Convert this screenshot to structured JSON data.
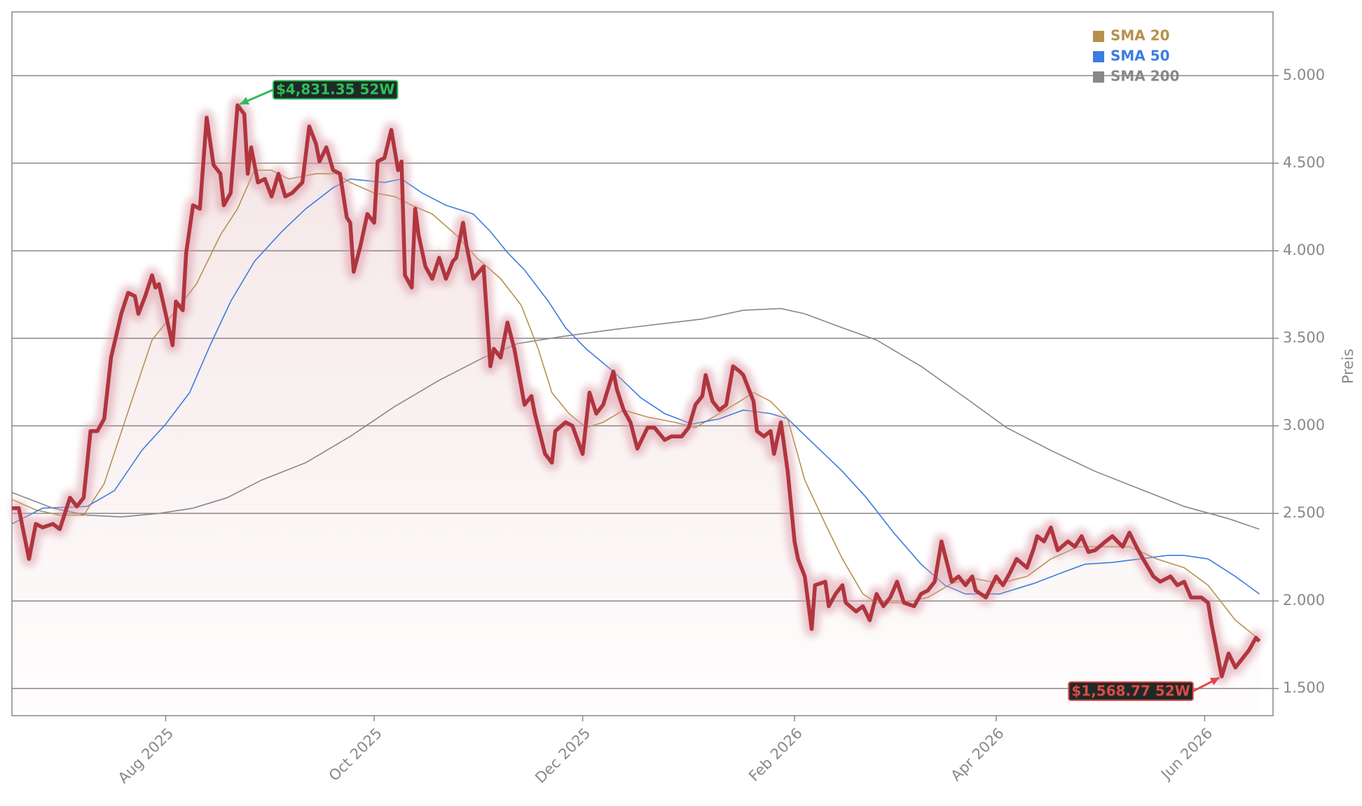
{
  "chart_data": {
    "type": "line",
    "color": "#b0353f",
    "x": [
      -45,
      -43,
      -40,
      -38,
      -36,
      -33,
      -31,
      -28,
      -26,
      -24,
      -22,
      -20,
      -18,
      -16,
      -13,
      -11,
      -9,
      -8,
      -6,
      -4,
      -3,
      -2,
      0,
      2,
      3,
      5,
      6,
      8,
      10,
      12,
      14,
      16,
      17,
      19,
      21,
      23,
      24,
      25,
      27,
      29,
      31,
      33,
      35,
      37,
      40,
      42,
      44,
      45,
      47,
      49,
      51,
      53,
      54,
      55,
      57,
      59,
      61,
      62,
      64,
      66,
      68,
      69,
      70,
      72,
      73,
      74,
      76,
      78,
      80,
      82,
      84,
      85,
      87,
      88,
      90,
      93,
      95,
      96,
      98,
      100,
      102,
      105,
      107,
      108,
      111,
      113,
      114,
      117,
      119,
      122,
      124,
      126,
      128,
      131,
      132,
      134,
      136,
      138,
      141,
      143,
      146,
      148,
      151,
      153,
      155,
      157,
      158,
      160,
      162,
      164,
      166,
      168,
      169,
      172,
      173,
      175,
      177,
      178,
      180,
      182,
      184,
      185,
      187,
      189,
      190,
      193,
      194,
      196,
      198,
      199,
      202,
      204,
      206,
      208,
      210,
      212,
      214,
      216,
      219,
      221,
      223,
      225,
      227,
      230,
      232,
      234,
      236,
      237,
      240,
      243,
      245,
      247,
      249,
      252,
      254,
      255,
      257,
      259,
      261,
      264,
      266,
      268,
      270,
      272,
      275,
      277,
      280,
      282,
      284,
      286,
      289,
      291,
      294,
      296,
      298,
      300,
      303,
      305,
      306,
      307,
      309,
      311,
      313,
      315,
      317,
      319,
      320
    ],
    "values": [
      2530,
      2530,
      2240,
      2440,
      2420,
      2440,
      2410,
      2590,
      2540,
      2590,
      2970,
      2970,
      3040,
      3390,
      3640,
      3760,
      3740,
      3640,
      3740,
      3860,
      3790,
      3810,
      3640,
      3460,
      3710,
      3660,
      3990,
      4260,
      4240,
      4760,
      4490,
      4440,
      4260,
      4330,
      4831.35,
      4780,
      4440,
      4590,
      4390,
      4410,
      4310,
      4440,
      4310,
      4330,
      4390,
      4710,
      4610,
      4510,
      4590,
      4460,
      4440,
      4190,
      4160,
      3880,
      4030,
      4210,
      4160,
      4510,
      4530,
      4690,
      4460,
      4510,
      3860,
      3790,
      4240,
      4090,
      3910,
      3840,
      3960,
      3840,
      3940,
      3960,
      4160,
      4030,
      3840,
      3910,
      3340,
      3440,
      3390,
      3590,
      3440,
      3120,
      3170,
      3070,
      2840,
      2790,
      2970,
      3020,
      3000,
      2840,
      3190,
      3070,
      3120,
      3310,
      3210,
      3090,
      3020,
      2870,
      2990,
      2990,
      2920,
      2940,
      2940,
      2990,
      3120,
      3170,
      3290,
      3140,
      3090,
      3120,
      3340,
      3310,
      3290,
      3140,
      2970,
      2940,
      2970,
      2840,
      3020,
      2740,
      2340,
      2240,
      2140,
      1840,
      2090,
      2110,
      1970,
      2040,
      2090,
      1990,
      1940,
      1970,
      1890,
      2040,
      1970,
      2020,
      2110,
      1990,
      1970,
      2040,
      2060,
      2110,
      2340,
      2110,
      2140,
      2090,
      2140,
      2060,
      2020,
      2140,
      2090,
      2160,
      2240,
      2190,
      2300,
      2370,
      2340,
      2420,
      2290,
      2340,
      2310,
      2370,
      2280,
      2290,
      2340,
      2370,
      2310,
      2390,
      2310,
      2240,
      2140,
      2110,
      2140,
      2090,
      2110,
      2020,
      2020,
      1990,
      1870,
      1770,
      1568.77,
      1700,
      1620,
      1670,
      1720,
      1790,
      1770
    ],
    "series": [
      {
        "name": "SMA 20",
        "color": "#b5924c",
        "x": [
          -45,
          -38,
          -31,
          -24,
          -18,
          -10,
          -4,
          3,
          9,
          16,
          21,
          26,
          31,
          36,
          44,
          50,
          54,
          61,
          67,
          72,
          78,
          85,
          91,
          98,
          104,
          109,
          113,
          118,
          123,
          128,
          134,
          141,
          149,
          155,
          162,
          168,
          172,
          177,
          182,
          187,
          193,
          198,
          204,
          208,
          216,
          223,
          230,
          236,
          244,
          252,
          259,
          267,
          275,
          282,
          290,
          298,
          305,
          313,
          320
        ],
        "values": [
          2580,
          2520,
          2490,
          2490,
          2670,
          3140,
          3490,
          3660,
          3810,
          4090,
          4240,
          4460,
          4460,
          4410,
          4440,
          4440,
          4390,
          4330,
          4310,
          4260,
          4210,
          4090,
          3960,
          3840,
          3690,
          3440,
          3190,
          3070,
          2990,
          3020,
          3090,
          3050,
          3020,
          2990,
          3070,
          3140,
          3190,
          3140,
          3040,
          2690,
          2440,
          2240,
          2040,
          1990,
          1990,
          2020,
          2100,
          2130,
          2100,
          2140,
          2240,
          2310,
          2310,
          2310,
          2240,
          2190,
          2090,
          1890,
          1780
        ]
      },
      {
        "name": "SMA 50",
        "color": "#3b7de0",
        "x": [
          -45,
          -36,
          -23,
          -15,
          -7,
          0,
          7,
          13,
          19,
          26,
          34,
          41,
          49,
          54,
          59,
          64,
          69,
          75,
          82,
          90,
          95,
          100,
          105,
          112,
          117,
          123,
          131,
          139,
          146,
          154,
          162,
          169,
          177,
          182,
          190,
          198,
          205,
          213,
          221,
          228,
          234,
          244,
          254,
          262,
          269,
          277,
          285,
          293,
          298,
          305,
          313,
          320
        ],
        "values": [
          2440,
          2530,
          2540,
          2630,
          2860,
          3010,
          3190,
          3460,
          3710,
          3940,
          4110,
          4240,
          4360,
          4410,
          4400,
          4390,
          4410,
          4330,
          4260,
          4210,
          4110,
          3990,
          3890,
          3710,
          3560,
          3440,
          3310,
          3160,
          3070,
          3010,
          3040,
          3090,
          3070,
          3040,
          2890,
          2740,
          2590,
          2390,
          2210,
          2090,
          2040,
          2040,
          2100,
          2160,
          2210,
          2220,
          2240,
          2260,
          2260,
          2240,
          2140,
          2040
        ]
      },
      {
        "name": "SMA 200",
        "color": "#888888",
        "x": [
          -45,
          -33,
          -23,
          -13,
          -2,
          8,
          18,
          28,
          41,
          54,
          67,
          80,
          93,
          103,
          116,
          131,
          144,
          157,
          169,
          180,
          187,
          198,
          208,
          221,
          234,
          246,
          259,
          272,
          285,
          298,
          311,
          320
        ],
        "values": [
          2620,
          2530,
          2490,
          2480,
          2500,
          2530,
          2590,
          2690,
          2790,
          2940,
          3110,
          3260,
          3390,
          3470,
          3510,
          3550,
          3580,
          3610,
          3660,
          3670,
          3640,
          3560,
          3490,
          3340,
          3160,
          2990,
          2860,
          2740,
          2640,
          2540,
          2470,
          2410
        ]
      }
    ],
    "xlim": [
      -45,
      324
    ],
    "xticks": [
      {
        "value": 0,
        "label": "Aug 2025"
      },
      {
        "value": 61,
        "label": "Oct 2025"
      },
      {
        "value": 122,
        "label": "Dec 2025"
      },
      {
        "value": 184,
        "label": "Feb 2026"
      },
      {
        "value": 243,
        "label": "Apr 2026"
      },
      {
        "value": 304,
        "label": "Jun 2026"
      }
    ],
    "ylim": [
      1345,
      5364
    ],
    "yticks": [
      {
        "value": 1500,
        "label": "1.500"
      },
      {
        "value": 2000,
        "label": "2.000"
      },
      {
        "value": 2500,
        "label": "2.500"
      },
      {
        "value": 3000,
        "label": "3.000"
      },
      {
        "value": 3500,
        "label": "3.500"
      },
      {
        "value": 4000,
        "label": "4.000"
      },
      {
        "value": 4500,
        "label": "4.500"
      },
      {
        "value": 5000,
        "label": "5.000"
      }
    ],
    "y_label": "Preis",
    "grid": true,
    "legend": "upper right",
    "annotations": [
      {
        "label": "$4,831.35 52W",
        "x": 21,
        "value": 4831.35,
        "color": "#2ebd5a"
      },
      {
        "label": "$1,568.77 52W",
        "x": 309,
        "value": 1568.77,
        "color": "#e04848"
      }
    ]
  }
}
